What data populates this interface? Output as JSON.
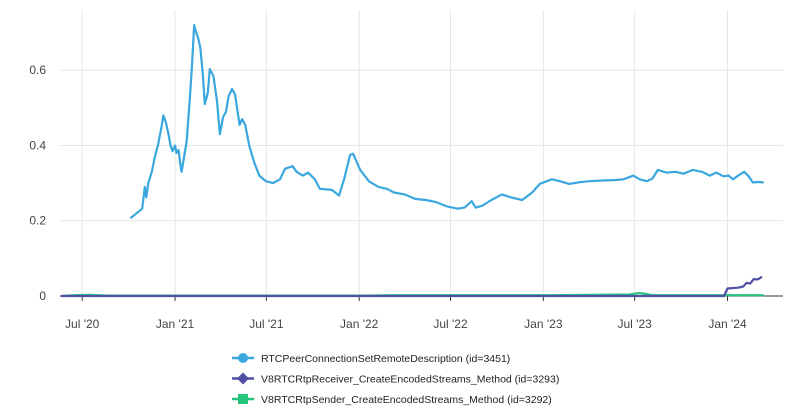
{
  "chart_data": {
    "type": "line",
    "title": "",
    "xlabel": "",
    "ylabel": "",
    "x_ticks": [
      {
        "date": "2020-07-01",
        "label": "Jul '20"
      },
      {
        "date": "2021-01-01",
        "label": "Jan '21"
      },
      {
        "date": "2021-07-01",
        "label": "Jul '21"
      },
      {
        "date": "2022-01-01",
        "label": "Jan '22"
      },
      {
        "date": "2022-07-01",
        "label": "Jul '22"
      },
      {
        "date": "2023-01-01",
        "label": "Jan '23"
      },
      {
        "date": "2023-07-01",
        "label": "Jul '23"
      },
      {
        "date": "2024-01-01",
        "label": "Jan '24"
      }
    ],
    "y_ticks": [
      {
        "value": 0,
        "label": "0"
      },
      {
        "value": 0.2,
        "label": "0.2"
      },
      {
        "value": 0.4,
        "label": "0.4"
      },
      {
        "value": 0.6,
        "label": "0.6"
      }
    ],
    "xlim": [
      "2020-05-18",
      "2024-04-20"
    ],
    "ylim": [
      0,
      0.76
    ],
    "grid": true,
    "legend_position": "bottom",
    "series": [
      {
        "name": "RTCPeerConnectionSetRemoteDescription (id=3451)",
        "color": "#3aa7df",
        "marker": "circle",
        "points": [
          [
            "2020-10-06",
            0.208
          ],
          [
            "2020-10-28",
            0.232
          ],
          [
            "2020-11-02",
            0.29
          ],
          [
            "2020-11-05",
            0.262
          ],
          [
            "2020-11-09",
            0.3
          ],
          [
            "2020-11-16",
            0.33
          ],
          [
            "2020-11-22",
            0.37
          ],
          [
            "2020-11-28",
            0.4
          ],
          [
            "2020-12-05",
            0.448
          ],
          [
            "2020-12-09",
            0.48
          ],
          [
            "2020-12-14",
            0.46
          ],
          [
            "2020-12-19",
            0.43
          ],
          [
            "2020-12-23",
            0.4
          ],
          [
            "2020-12-27",
            0.385
          ],
          [
            "2021-01-01",
            0.4
          ],
          [
            "2021-01-04",
            0.38
          ],
          [
            "2021-01-08",
            0.388
          ],
          [
            "2021-01-11",
            0.355
          ],
          [
            "2021-01-14",
            0.33
          ],
          [
            "2021-01-19",
            0.37
          ],
          [
            "2021-01-24",
            0.41
          ],
          [
            "2021-01-30",
            0.52
          ],
          [
            "2021-02-03",
            0.6
          ],
          [
            "2021-02-08",
            0.72
          ],
          [
            "2021-02-12",
            0.7
          ],
          [
            "2021-02-16",
            0.685
          ],
          [
            "2021-02-20",
            0.66
          ],
          [
            "2021-02-25",
            0.59
          ],
          [
            "2021-03-01",
            0.51
          ],
          [
            "2021-03-07",
            0.54
          ],
          [
            "2021-03-11",
            0.603
          ],
          [
            "2021-03-18",
            0.585
          ],
          [
            "2021-03-25",
            0.52
          ],
          [
            "2021-03-31",
            0.43
          ],
          [
            "2021-04-06",
            0.475
          ],
          [
            "2021-04-12",
            0.49
          ],
          [
            "2021-04-17",
            0.53
          ],
          [
            "2021-04-24",
            0.55
          ],
          [
            "2021-04-30",
            0.535
          ],
          [
            "2021-05-05",
            0.49
          ],
          [
            "2021-05-09",
            0.455
          ],
          [
            "2021-05-14",
            0.47
          ],
          [
            "2021-05-20",
            0.455
          ],
          [
            "2021-05-28",
            0.4
          ],
          [
            "2021-06-07",
            0.355
          ],
          [
            "2021-06-17",
            0.32
          ],
          [
            "2021-06-30",
            0.305
          ],
          [
            "2021-07-14",
            0.3
          ],
          [
            "2021-07-28",
            0.31
          ],
          [
            "2021-08-07",
            0.338
          ],
          [
            "2021-08-22",
            0.345
          ],
          [
            "2021-08-30",
            0.33
          ],
          [
            "2021-09-11",
            0.32
          ],
          [
            "2021-09-22",
            0.328
          ],
          [
            "2021-10-05",
            0.31
          ],
          [
            "2021-10-15",
            0.285
          ],
          [
            "2021-11-08",
            0.282
          ],
          [
            "2021-11-22",
            0.267
          ],
          [
            "2021-12-02",
            0.31
          ],
          [
            "2021-12-14",
            0.375
          ],
          [
            "2021-12-20",
            0.378
          ],
          [
            "2022-01-03",
            0.335
          ],
          [
            "2022-01-20",
            0.305
          ],
          [
            "2022-02-08",
            0.29
          ],
          [
            "2022-02-25",
            0.285
          ],
          [
            "2022-03-11",
            0.275
          ],
          [
            "2022-04-01",
            0.27
          ],
          [
            "2022-04-22",
            0.258
          ],
          [
            "2022-05-13",
            0.255
          ],
          [
            "2022-06-01",
            0.25
          ],
          [
            "2022-06-24",
            0.238
          ],
          [
            "2022-07-15",
            0.232
          ],
          [
            "2022-07-29",
            0.235
          ],
          [
            "2022-08-12",
            0.252
          ],
          [
            "2022-08-20",
            0.235
          ],
          [
            "2022-09-02",
            0.24
          ],
          [
            "2022-09-20",
            0.255
          ],
          [
            "2022-10-11",
            0.27
          ],
          [
            "2022-10-29",
            0.262
          ],
          [
            "2022-11-20",
            0.255
          ],
          [
            "2022-12-10",
            0.275
          ],
          [
            "2022-12-25",
            0.298
          ],
          [
            "2023-01-18",
            0.31
          ],
          [
            "2023-02-03",
            0.305
          ],
          [
            "2023-02-21",
            0.298
          ],
          [
            "2023-03-11",
            0.302
          ],
          [
            "2023-04-02",
            0.305
          ],
          [
            "2023-04-27",
            0.307
          ],
          [
            "2023-05-20",
            0.308
          ],
          [
            "2023-06-09",
            0.31
          ],
          [
            "2023-06-28",
            0.32
          ],
          [
            "2023-07-11",
            0.31
          ],
          [
            "2023-07-25",
            0.305
          ],
          [
            "2023-08-05",
            0.312
          ],
          [
            "2023-08-16",
            0.335
          ],
          [
            "2023-09-02",
            0.328
          ],
          [
            "2023-09-20",
            0.33
          ],
          [
            "2023-10-06",
            0.325
          ],
          [
            "2023-10-24",
            0.335
          ],
          [
            "2023-11-11",
            0.33
          ],
          [
            "2023-11-27",
            0.32
          ],
          [
            "2023-12-10",
            0.328
          ],
          [
            "2023-12-24",
            0.318
          ],
          [
            "2024-01-03",
            0.32
          ],
          [
            "2024-01-12",
            0.31
          ],
          [
            "2024-01-22",
            0.32
          ],
          [
            "2024-02-03",
            0.33
          ],
          [
            "2024-02-12",
            0.318
          ],
          [
            "2024-02-20",
            0.302
          ],
          [
            "2024-03-04",
            0.303
          ],
          [
            "2024-03-11",
            0.302
          ]
        ]
      },
      {
        "name": "V8RTCRtpReceiver_CreateEncodedStreams_Method (id=3293)",
        "color": "#4f4fa6",
        "marker": "diamond",
        "points": [
          [
            "2020-05-22",
            0.0
          ],
          [
            "2023-12-25",
            0.0
          ],
          [
            "2024-01-01",
            0.02
          ],
          [
            "2024-01-22",
            0.022
          ],
          [
            "2024-02-01",
            0.025
          ],
          [
            "2024-02-08",
            0.035
          ],
          [
            "2024-02-15",
            0.033
          ],
          [
            "2024-02-22",
            0.045
          ],
          [
            "2024-03-01",
            0.044
          ],
          [
            "2024-03-08",
            0.05
          ]
        ]
      },
      {
        "name": "V8RTCRtpSender_CreateEncodedStreams_Method (id=3292)",
        "color": "#27c47e",
        "marker": "square",
        "points": [
          [
            "2020-05-22",
            0.0
          ],
          [
            "2020-06-15",
            0.002
          ],
          [
            "2020-07-15",
            0.003
          ],
          [
            "2020-08-20",
            0.001
          ],
          [
            "2021-06-01",
            0.001
          ],
          [
            "2022-01-15",
            0.001
          ],
          [
            "2022-03-01",
            0.002
          ],
          [
            "2022-09-01",
            0.002
          ],
          [
            "2023-01-15",
            0.002
          ],
          [
            "2023-06-20",
            0.004
          ],
          [
            "2023-07-10",
            0.008
          ],
          [
            "2023-07-25",
            0.005
          ],
          [
            "2023-08-05",
            0.002
          ],
          [
            "2023-11-01",
            0.002
          ],
          [
            "2024-03-11",
            0.002
          ]
        ]
      }
    ]
  }
}
